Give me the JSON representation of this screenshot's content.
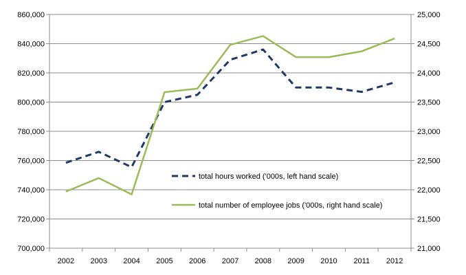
{
  "chart_data": {
    "type": "line",
    "title": "",
    "xlabel": "",
    "ylabel": "",
    "x": [
      "2002",
      "2003",
      "2004",
      "2005",
      "2006",
      "2007",
      "2008",
      "2009",
      "2010",
      "2011",
      "2012"
    ],
    "y_left": {
      "min": 700000,
      "max": 860000,
      "step": 20000,
      "ticks": [
        "700,000",
        "720,000",
        "740,000",
        "760,000",
        "780,000",
        "800,000",
        "820,000",
        "840,000",
        "860,000"
      ]
    },
    "y_right": {
      "min": 21000,
      "max": 25000,
      "step": 500,
      "ticks": [
        "21,000",
        "21,500",
        "22,000",
        "22,500",
        "23,000",
        "23,500",
        "24,000",
        "24,500",
        "25,000"
      ]
    },
    "series": [
      {
        "name": "total hours worked ('000s, left hand scale)",
        "axis": "left",
        "style": "dashed",
        "color": "#1f3864",
        "values": [
          758500,
          766000,
          755500,
          800000,
          805000,
          829000,
          836000,
          810000,
          810000,
          807000,
          813500
        ]
      },
      {
        "name": "total number of employee jobs ('000s, right hand scale)",
        "axis": "right",
        "style": "solid",
        "color": "#9bbb59",
        "values": [
          21970,
          22200,
          21920,
          23670,
          23730,
          24480,
          24630,
          24270,
          24270,
          24370,
          24590
        ]
      }
    ],
    "grid": true,
    "legend_position": "inside-bottom-right"
  }
}
